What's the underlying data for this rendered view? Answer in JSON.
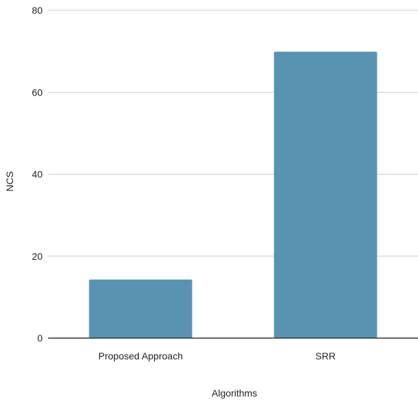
{
  "chart_data": {
    "type": "bar",
    "categories": [
      "Proposed Approach",
      "SRR"
    ],
    "values": [
      14.3,
      69.9
    ],
    "xlabel": "Algorithms",
    "ylabel": "NCS",
    "ylim": [
      0,
      80
    ],
    "yticks": [
      0,
      20,
      40,
      60,
      80
    ],
    "grid": true,
    "legend": "none",
    "colors": {
      "bar": "#5a93b1",
      "grid": "#cccccc",
      "axis": "#333333",
      "text": "#222222"
    }
  }
}
